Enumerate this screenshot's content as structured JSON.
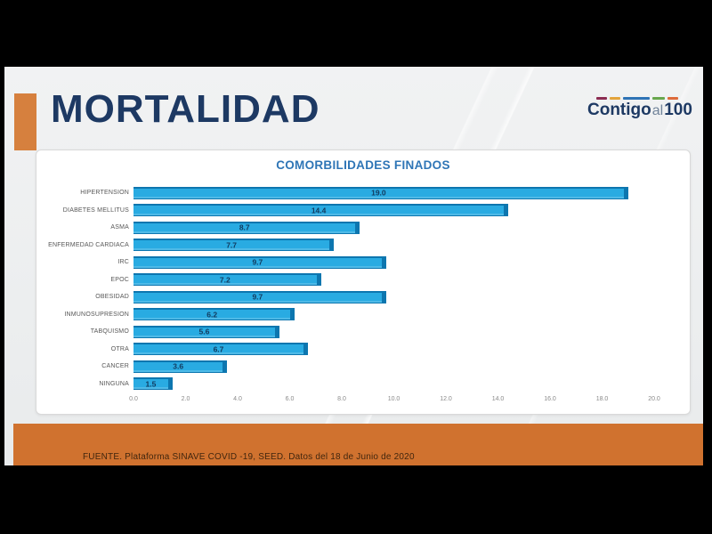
{
  "window": {
    "background": "#000000"
  },
  "slide": {
    "title": "MORTALIDAD",
    "title_color": "#1d3963",
    "accent_color": "#d6803e",
    "background": "#eceeef"
  },
  "logo": {
    "part1": "Contigo",
    "part2": "al",
    "part3": "100",
    "text_color": "#1d3963",
    "dashes": [
      {
        "color": "#8c2d52",
        "width": 12
      },
      {
        "color": "#e3a43b",
        "width": 12
      },
      {
        "color": "#2e74b5",
        "width": 30
      },
      {
        "color": "#68a74d",
        "width": 14
      },
      {
        "color": "#dd6b3a",
        "width": 12
      }
    ]
  },
  "chart_data": {
    "type": "bar",
    "orientation": "horizontal",
    "title": "COMORBILIDADES FINADOS",
    "title_color": "#2e75b6",
    "categories": [
      "HIPERTENSION",
      "DIABETES MELLITUS",
      "ASMA",
      "ENFERMEDAD CARDIACA",
      "IRC",
      "EPOC",
      "OBESIDAD",
      "INMUNOSUPRESION",
      "TABQUISMO",
      "OTRA",
      "CANCER",
      "NINGUNA"
    ],
    "values": [
      19.0,
      14.4,
      8.7,
      7.7,
      9.7,
      7.2,
      9.7,
      6.2,
      5.6,
      6.7,
      3.6,
      1.5
    ],
    "value_labels": [
      "19.0",
      "14.4",
      "8.7",
      "7.7",
      "9.7",
      "7.2",
      "9.7",
      "6.2",
      "5.6",
      "6.7",
      "3.6",
      "1.5"
    ],
    "xlim": [
      0,
      20
    ],
    "x_ticks": [
      "0.0",
      "2.0",
      "4.0",
      "6.0",
      "8.0",
      "10.0",
      "12.0",
      "14.0",
      "16.0",
      "18.0",
      "20.0"
    ],
    "bar_color": "#29abe2",
    "bar_edge_color": "#0d76af",
    "value_label_color": "#123a5e",
    "grid": false,
    "legend": false
  },
  "footer": {
    "text": "FUENTE. Plataforma SINAVE COVID -19, SEED. Datos del 18 de Junio de 2020",
    "band_color": "#d0722f",
    "text_color": "#41260e"
  }
}
